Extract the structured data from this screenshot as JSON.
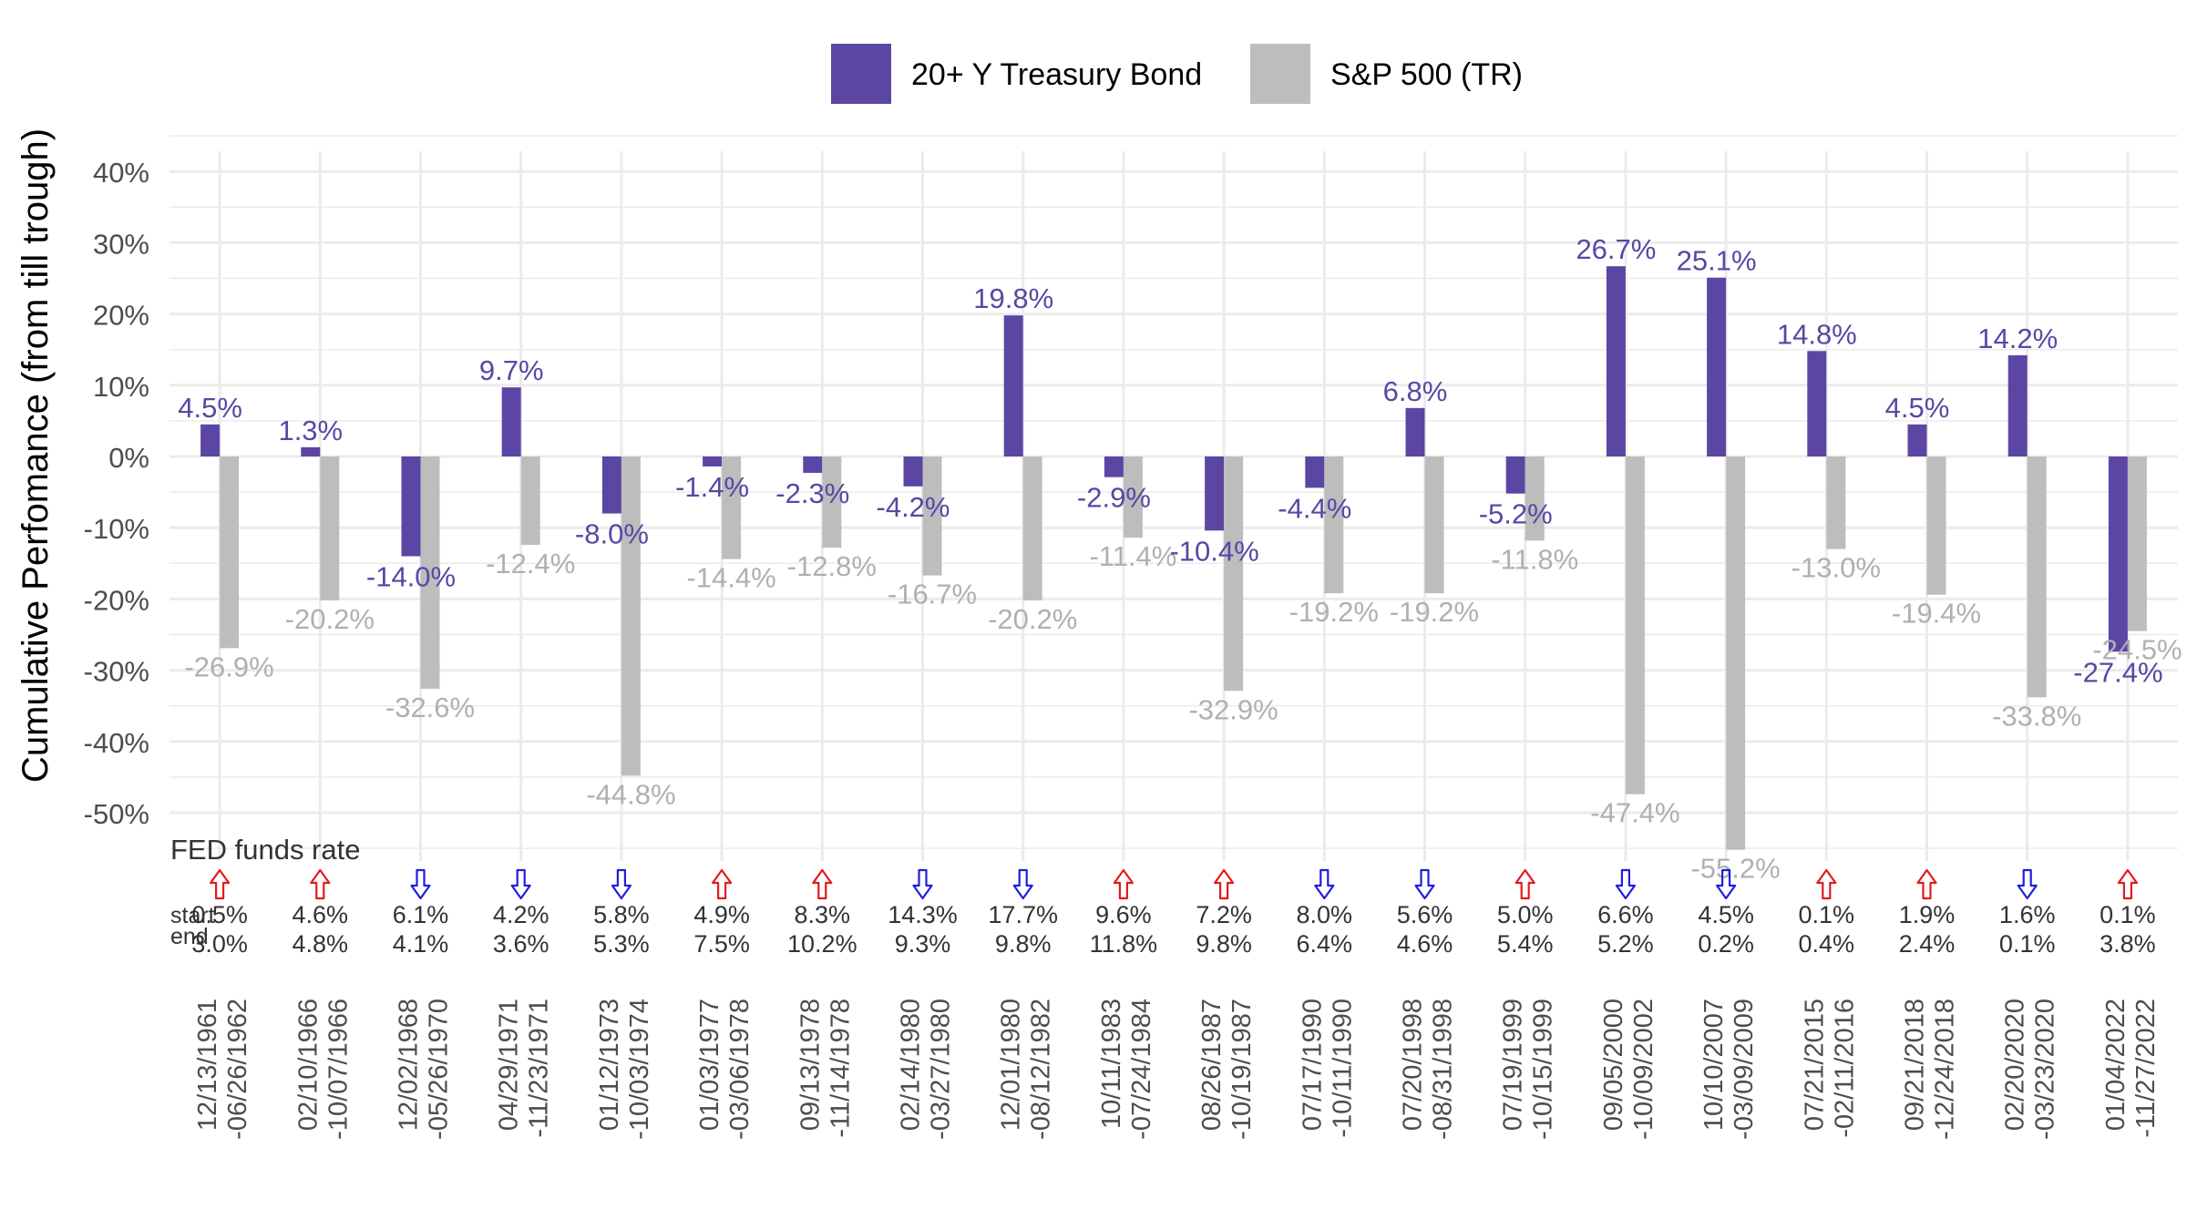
{
  "chart_data": {
    "type": "bar",
    "ylabel": "Cumulative Perfomance (from till trough)",
    "xlabel": "",
    "ylim": [
      -55.2,
      40
    ],
    "yticks": [
      40,
      30,
      20,
      10,
      0,
      -10,
      -20,
      -30,
      -40,
      -50
    ],
    "ytick_labels": [
      "40%",
      "30%",
      "20%",
      "10%",
      "0%",
      "-10%",
      "-20%",
      "-30%",
      "-40%",
      "-50%"
    ],
    "legend_position": "top",
    "series": [
      {
        "name": "20+ Y Treasury Bond",
        "color": "#5b46a3",
        "values": [
          4.5,
          1.3,
          -14.0,
          9.7,
          -8.0,
          -1.4,
          -2.3,
          -4.2,
          19.8,
          -2.9,
          -10.4,
          -4.4,
          6.8,
          -5.2,
          26.7,
          25.1,
          14.8,
          4.5,
          14.2,
          -27.4
        ],
        "labels": [
          "4.5%",
          "1.3%",
          "-14.0%",
          "9.7%",
          "-8.0%",
          "-1.4%",
          "-2.3%",
          "-4.2%",
          "19.8%",
          "-2.9%",
          "-10.4%",
          "-4.4%",
          "6.8%",
          "-5.2%",
          "26.7%",
          "25.1%",
          "14.8%",
          "4.5%",
          "14.2%",
          "-27.4%"
        ]
      },
      {
        "name": "S&P 500 (TR)",
        "color": "#bdbdbd",
        "values": [
          -26.9,
          -20.2,
          -32.6,
          -12.4,
          -44.8,
          -14.4,
          -12.8,
          -16.7,
          -20.2,
          -11.4,
          -32.9,
          -19.2,
          -19.2,
          -11.8,
          -47.4,
          -55.2,
          -13.0,
          -19.4,
          -33.8,
          -24.5
        ],
        "labels": [
          "-26.9%",
          "-20.2%",
          "-32.6%",
          "-12.4%",
          "-44.8%",
          "-14.4%",
          "-12.8%",
          "-16.7%",
          "-20.2%",
          "-11.4%",
          "-32.9%",
          "-19.2%",
          "-19.2%",
          "-11.8%",
          "-47.4%",
          "-55.2%",
          "-13.0%",
          "-19.4%",
          "-33.8%",
          "-24.5%"
        ]
      }
    ],
    "categories": [
      [
        "12/13/1961",
        "-06/26/1962"
      ],
      [
        "02/10/1966",
        "-10/07/1966"
      ],
      [
        "12/02/1968",
        "-05/26/1970"
      ],
      [
        "04/29/1971",
        "-11/23/1971"
      ],
      [
        "01/12/1973",
        "-10/03/1974"
      ],
      [
        "01/03/1977",
        "-03/06/1978"
      ],
      [
        "09/13/1978",
        "-11/14/1978"
      ],
      [
        "02/14/1980",
        "-03/27/1980"
      ],
      [
        "12/01/1980",
        "-08/12/1982"
      ],
      [
        "10/11/1983",
        "-07/24/1984"
      ],
      [
        "08/26/1987",
        "-10/19/1987"
      ],
      [
        "07/17/1990",
        "-10/11/1990"
      ],
      [
        "07/20/1998",
        "-08/31/1998"
      ],
      [
        "07/19/1999",
        "-10/15/1999"
      ],
      [
        "09/05/2000",
        "-10/09/2002"
      ],
      [
        "10/10/2007",
        "-03/09/2009"
      ],
      [
        "07/21/2015",
        "-02/11/2016"
      ],
      [
        "09/21/2018",
        "-12/24/2018"
      ],
      [
        "02/20/2020",
        "-03/23/2020"
      ],
      [
        "01/04/2022",
        "-11/27/2022"
      ]
    ],
    "fed": {
      "title": "FED funds rate",
      "start_label": "start",
      "end_label": "end",
      "up_color": "#e31a1c",
      "down_color": "#1f1fdb",
      "direction": [
        "up",
        "up",
        "down",
        "down",
        "down",
        "up",
        "up",
        "down",
        "down",
        "up",
        "up",
        "down",
        "down",
        "up",
        "down",
        "down",
        "up",
        "up",
        "down",
        "up"
      ],
      "start": [
        "0.5%",
        "4.6%",
        "6.1%",
        "4.2%",
        "5.8%",
        "4.9%",
        "8.3%",
        "14.3%",
        "17.7%",
        "9.6%",
        "7.2%",
        "8.0%",
        "5.6%",
        "5.0%",
        "6.6%",
        "4.5%",
        "0.1%",
        "1.9%",
        "1.6%",
        "0.1%"
      ],
      "end": [
        "3.0%",
        "4.8%",
        "4.1%",
        "3.6%",
        "5.3%",
        "7.5%",
        "10.2%",
        "9.3%",
        "9.8%",
        "11.8%",
        "9.8%",
        "6.4%",
        "4.6%",
        "5.4%",
        "5.2%",
        "0.2%",
        "0.4%",
        "2.4%",
        "0.1%",
        "3.8%"
      ]
    }
  }
}
